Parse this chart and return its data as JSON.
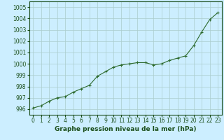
{
  "x": [
    0,
    1,
    2,
    3,
    4,
    5,
    6,
    7,
    8,
    9,
    10,
    11,
    12,
    13,
    14,
    15,
    16,
    17,
    18,
    19,
    20,
    21,
    22,
    23
  ],
  "y": [
    996.1,
    996.3,
    996.7,
    997.0,
    997.1,
    997.5,
    997.8,
    998.1,
    998.9,
    999.3,
    999.7,
    999.9,
    1000.0,
    1000.1,
    1000.1,
    999.9,
    1000.0,
    1000.3,
    1000.5,
    1000.7,
    1001.6,
    1002.8,
    1003.9,
    1004.5
  ],
  "line_color": "#2d6a2d",
  "marker": "+",
  "marker_size": 3,
  "linewidth": 0.8,
  "bg_color": "#cceeff",
  "grid_color": "#aacccc",
  "xlabel": "Graphe pression niveau de la mer (hPa)",
  "xlabel_fontsize": 6.5,
  "ylim": [
    995.5,
    1005.5
  ],
  "ytick_min": 996,
  "ytick_max": 1005,
  "ytick_step": 1,
  "tick_fontsize": 5.5,
  "label_color": "#1a4d1a"
}
